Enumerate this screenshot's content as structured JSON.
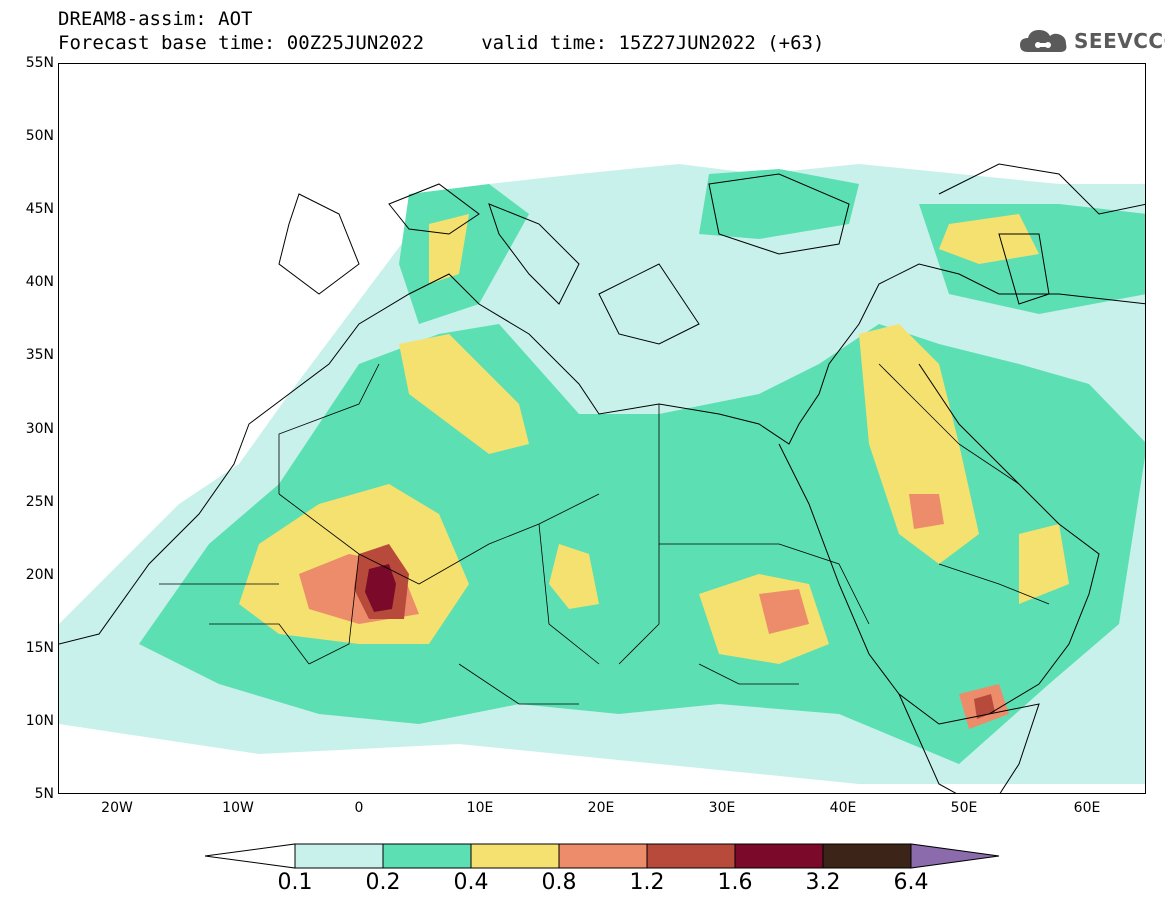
{
  "header": {
    "line1": "DREAM8-assim: AOT",
    "line2": "Forecast base time: 00Z25JUN2022     valid time: 15Z27JUN2022 (+63)"
  },
  "logo": {
    "text": "SEEVCCC",
    "icon": "cloud-icon",
    "color": "#5a5a5a"
  },
  "map": {
    "lat_range": [
      5,
      55
    ],
    "lon_range": [
      -25,
      65
    ],
    "lat_labels": [
      "5N",
      "10N",
      "15N",
      "20N",
      "25N",
      "30N",
      "35N",
      "40N",
      "45N",
      "50N",
      "55N"
    ],
    "lon_labels": [
      "20W",
      "10W",
      "0",
      "10E",
      "20E",
      "30E",
      "40E",
      "50E",
      "60E"
    ]
  },
  "legend": {
    "labels": [
      "0.1",
      "0.2",
      "0.4",
      "0.8",
      "1.2",
      "1.6",
      "3.2",
      "6.4"
    ],
    "colors": [
      "#c7f1ea",
      "#5cdfb3",
      "#f5e16f",
      "#ec8c6a",
      "#b74a3a",
      "#7b0a2a",
      "#3c2418",
      "#8b6bab"
    ],
    "below_color": "#ffffff"
  }
}
